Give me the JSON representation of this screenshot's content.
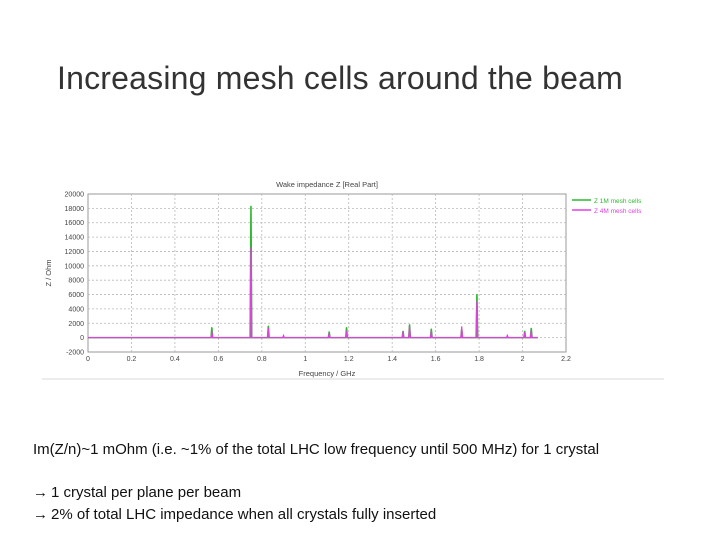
{
  "slide": {
    "title": "Increasing mesh cells around the beam",
    "notes": [
      {
        "arrow": "",
        "text": "Im(Z/n)~1 mOhm (i.e. ~1% of the total LHC low frequency until 500 MHz) for 1 crystal"
      },
      {
        "arrow": "→",
        "text": "1 crystal per plane per beam"
      },
      {
        "arrow": "→",
        "text": "2% of total LHC impedance when all crystals fully inserted"
      }
    ]
  },
  "chart_data": {
    "type": "line",
    "title": "Wake impedance Z [Real Part]",
    "xlabel": "Frequency / GHz",
    "ylabel": "Z / Ohm",
    "xlim": [
      0,
      2.2
    ],
    "ylim": [
      -2000,
      20000
    ],
    "xticks": [
      0,
      0.2,
      0.4,
      0.6,
      0.8,
      1,
      1.2,
      1.4,
      1.6,
      1.8,
      2,
      2.2
    ],
    "xtick_labels": [
      "0",
      "0.2",
      "0.4",
      "0.6",
      "0.8",
      "1",
      "1.2",
      "1.4",
      "1.6",
      "1.8",
      "2",
      "2.2"
    ],
    "yticks": [
      -2000,
      0,
      2000,
      4000,
      6000,
      8000,
      10000,
      12000,
      14000,
      16000,
      18000,
      20000
    ],
    "ytick_labels": [
      "-2000",
      "0",
      "2000",
      "4000",
      "6000",
      "8000",
      "10000",
      "12000",
      "14000",
      "16000",
      "18000",
      "20000"
    ],
    "grid": true,
    "legend_position": "right",
    "series": [
      {
        "name": "Z 1M mesh cells",
        "color": "#2db82d",
        "baseline": 0,
        "peaks": [
          [
            0.57,
            1400
          ],
          [
            0.75,
            18300
          ],
          [
            0.83,
            1600
          ],
          [
            1.11,
            800
          ],
          [
            1.19,
            1400
          ],
          [
            1.45,
            900
          ],
          [
            1.48,
            1800
          ],
          [
            1.58,
            1200
          ],
          [
            1.72,
            1200
          ],
          [
            1.79,
            6000
          ],
          [
            2.01,
            900
          ],
          [
            2.04,
            1300
          ]
        ]
      },
      {
        "name": "Z 4M mesh cells",
        "color": "#e040e0",
        "baseline": 0,
        "peaks": [
          [
            0.57,
            900
          ],
          [
            0.75,
            12500
          ],
          [
            0.83,
            1300
          ],
          [
            0.9,
            300
          ],
          [
            1.11,
            600
          ],
          [
            1.19,
            900
          ],
          [
            1.45,
            800
          ],
          [
            1.48,
            1600
          ],
          [
            1.58,
            900
          ],
          [
            1.72,
            1500
          ],
          [
            1.79,
            5000
          ],
          [
            1.93,
            300
          ],
          [
            2.01,
            700
          ],
          [
            2.04,
            1000
          ]
        ]
      }
    ]
  }
}
